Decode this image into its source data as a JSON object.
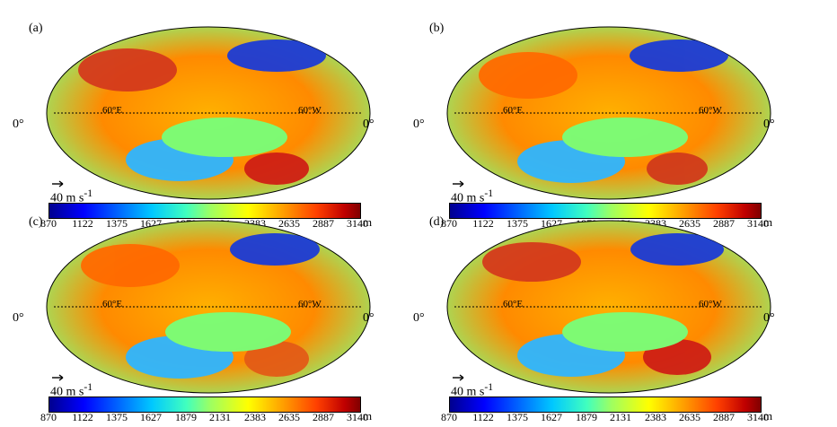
{
  "panels": [
    {
      "label": "(a)"
    },
    {
      "label": "(b)"
    },
    {
      "label": "(c)"
    },
    {
      "label": "(d)"
    }
  ],
  "labels": {
    "zero_left": "0°",
    "zero_right": "0°",
    "lon_60e": "60°E",
    "lon_60w": "60°W",
    "vector_ref": "40 m s",
    "vector_ref_sup": "-1",
    "colorbar_unit": "m"
  },
  "colorbar_ticks": [
    "870",
    "1122",
    "1375",
    "1627",
    "1879",
    "2131",
    "2383",
    "2635",
    "2887",
    "3140"
  ]
}
